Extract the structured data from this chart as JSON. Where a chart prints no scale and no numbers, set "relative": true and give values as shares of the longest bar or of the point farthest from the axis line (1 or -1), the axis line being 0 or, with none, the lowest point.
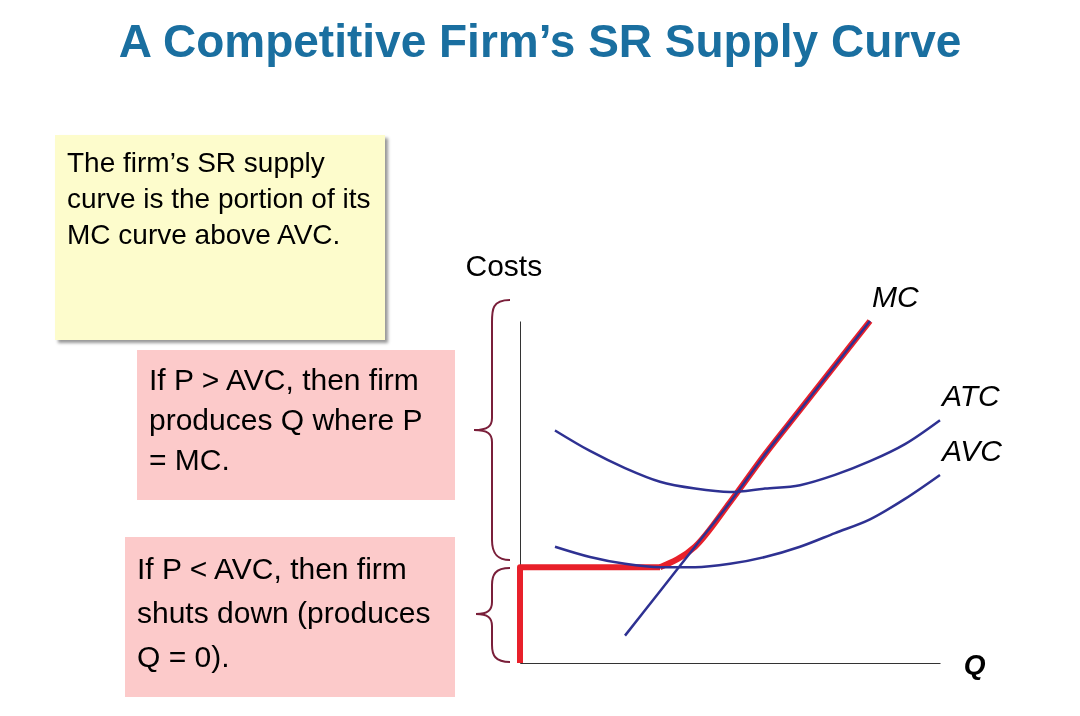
{
  "chart_data": {
    "type": "line",
    "title": "A Competitive Firm’s SR Supply Curve",
    "xlabel": "Q",
    "ylabel": "Costs",
    "relative": true,
    "tick_labels": false,
    "categories": [
      null,
      null,
      null,
      null,
      null,
      null,
      null,
      null,
      null,
      null,
      null,
      null,
      null
    ],
    "series": [
      {
        "name": "MC",
        "color": "#2e3192",
        "values": [
          null,
          null,
          null,
          0.08,
          0.21,
          0.34,
          0.47,
          0.61,
          0.74,
          0.87,
          1.0,
          null,
          null
        ]
      },
      {
        "name": "ATC",
        "color": "#2e3192",
        "values": [
          null,
          0.68,
          0.62,
          0.57,
          0.53,
          0.51,
          0.5,
          0.51,
          0.52,
          0.55,
          0.59,
          0.64,
          0.71
        ]
      },
      {
        "name": "AVC",
        "color": "#2e3192",
        "values": [
          null,
          0.34,
          0.31,
          0.29,
          0.28,
          0.28,
          0.29,
          0.31,
          0.34,
          0.38,
          0.42,
          0.48,
          0.55
        ]
      },
      {
        "type": "step",
        "color": "#e8202a",
        "values": [
          0,
          0.28,
          0.28,
          0.28,
          0.28,
          null,
          null,
          null,
          null,
          null,
          null,
          null,
          null
        ]
      },
      {
        "color": "#e8202a",
        "values": [
          null,
          null,
          null,
          null,
          0.28,
          0.34,
          0.47,
          0.61,
          0.74,
          0.87,
          1.0,
          null,
          null
        ]
      }
    ],
    "annotations": [
      "The firm’s SR supply curve is the portion of its MC curve above AVC.",
      "If P > AVC, then firm produces Q where P = MC.",
      "If P < AVC, then firm shuts down (produces Q = 0)."
    ]
  }
}
